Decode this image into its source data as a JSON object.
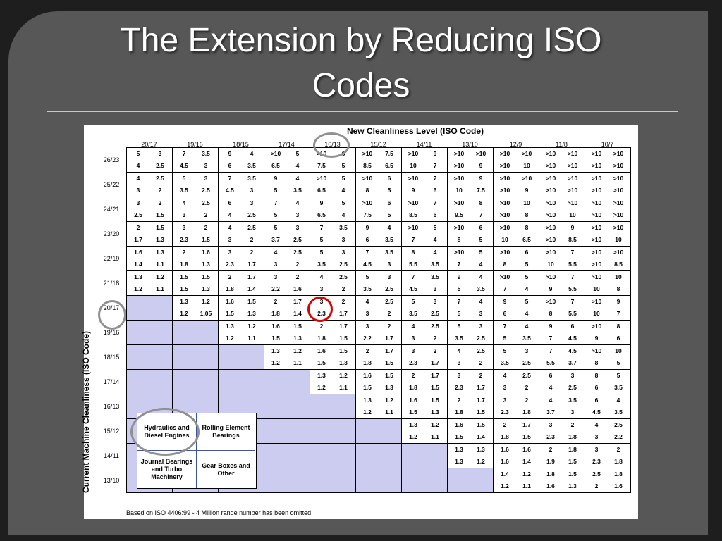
{
  "slide_title_line1": "The Extension by Reducing ISO",
  "slide_title_line2": "Codes",
  "figure": {
    "title": "New Cleanliness Level (ISO Code)",
    "y_axis_label": "Current Machine Cleanliness (ISO Code)",
    "footnote": "Based on ISO 4406:99 - 4 Million range number has been omitted.",
    "new_levels": [
      "20/17",
      "19/16",
      "18/15",
      "17/14",
      "16/13",
      "15/12",
      "14/11",
      "13/10",
      "12/9",
      "11/8",
      "10/7"
    ],
    "current_levels": [
      "26/23",
      "25/22",
      "24/21",
      "23/20",
      "22/19",
      "21/18",
      "20/17",
      "19/16",
      "18/15",
      "17/14",
      "16/13",
      "15/12",
      "14/11",
      "13/10"
    ],
    "legend": {
      "top_left": "Hydraulics and Diesel Engines",
      "top_right": "Rolling Element Bearings",
      "bottom_left": "Journal Bearings and Turbo Machinery",
      "bottom_right": "Gear Boxes and Other"
    },
    "rows": [
      [
        [
          [
            "5",
            "3"
          ],
          [
            "4",
            "2.5"
          ]
        ],
        [
          [
            "7",
            "3.5"
          ],
          [
            "4.5",
            "3"
          ]
        ],
        [
          [
            "9",
            "4"
          ],
          [
            "6",
            "3.5"
          ]
        ],
        [
          [
            ">10",
            "5"
          ],
          [
            "6.5",
            "4"
          ]
        ],
        [
          [
            ">10",
            "6"
          ],
          [
            "7.5",
            "5"
          ]
        ],
        [
          [
            ">10",
            "7.5"
          ],
          [
            "8.5",
            "6.5"
          ]
        ],
        [
          [
            ">10",
            "9"
          ],
          [
            "10",
            "7"
          ]
        ],
        [
          [
            ">10",
            ">10"
          ],
          [
            ">10",
            "9"
          ]
        ],
        [
          [
            ">10",
            ">10"
          ],
          [
            ">10",
            "10"
          ]
        ],
        [
          [
            ">10",
            ">10"
          ],
          [
            ">10",
            ">10"
          ]
        ],
        [
          [
            ">10",
            ">10"
          ],
          [
            ">10",
            ">10"
          ]
        ]
      ],
      [
        [
          [
            "4",
            "2.5"
          ],
          [
            "3",
            "2"
          ]
        ],
        [
          [
            "5",
            "3"
          ],
          [
            "3.5",
            "2.5"
          ]
        ],
        [
          [
            "7",
            "3.5"
          ],
          [
            "4.5",
            "3"
          ]
        ],
        [
          [
            "9",
            "4"
          ],
          [
            "5",
            "3.5"
          ]
        ],
        [
          [
            ">10",
            "5"
          ],
          [
            "6.5",
            "4"
          ]
        ],
        [
          [
            ">10",
            "6"
          ],
          [
            "8",
            "5"
          ]
        ],
        [
          [
            ">10",
            "7"
          ],
          [
            "9",
            "6"
          ]
        ],
        [
          [
            ">10",
            "9"
          ],
          [
            "10",
            "7.5"
          ]
        ],
        [
          [
            ">10",
            ">10"
          ],
          [
            ">10",
            "9"
          ]
        ],
        [
          [
            ">10",
            ">10"
          ],
          [
            ">10",
            ">10"
          ]
        ],
        [
          [
            ">10",
            ">10"
          ],
          [
            ">10",
            ">10"
          ]
        ]
      ],
      [
        [
          [
            "3",
            "2"
          ],
          [
            "2.5",
            "1.5"
          ]
        ],
        [
          [
            "4",
            "2.5"
          ],
          [
            "3",
            "2"
          ]
        ],
        [
          [
            "6",
            "3"
          ],
          [
            "4",
            "2.5"
          ]
        ],
        [
          [
            "7",
            "4"
          ],
          [
            "5",
            "3"
          ]
        ],
        [
          [
            "9",
            "5"
          ],
          [
            "6.5",
            "4"
          ]
        ],
        [
          [
            ">10",
            "6"
          ],
          [
            "7.5",
            "5"
          ]
        ],
        [
          [
            ">10",
            "7"
          ],
          [
            "8.5",
            "6"
          ]
        ],
        [
          [
            ">10",
            "8"
          ],
          [
            "9.5",
            "7"
          ]
        ],
        [
          [
            ">10",
            "10"
          ],
          [
            ">10",
            "8"
          ]
        ],
        [
          [
            ">10",
            ">10"
          ],
          [
            ">10",
            "10"
          ]
        ],
        [
          [
            ">10",
            ">10"
          ],
          [
            ">10",
            ">10"
          ]
        ]
      ],
      [
        [
          [
            "2",
            "1.5"
          ],
          [
            "1.7",
            "1.3"
          ]
        ],
        [
          [
            "3",
            "2"
          ],
          [
            "2.3",
            "1.5"
          ]
        ],
        [
          [
            "4",
            "2.5"
          ],
          [
            "3",
            "2"
          ]
        ],
        [
          [
            "5",
            "3"
          ],
          [
            "3.7",
            "2.5"
          ]
        ],
        [
          [
            "7",
            "3.5"
          ],
          [
            "5",
            "3"
          ]
        ],
        [
          [
            "9",
            "4"
          ],
          [
            "6",
            "3.5"
          ]
        ],
        [
          [
            ">10",
            "5"
          ],
          [
            "7",
            "4"
          ]
        ],
        [
          [
            ">10",
            "6"
          ],
          [
            "8",
            "5"
          ]
        ],
        [
          [
            ">10",
            "8"
          ],
          [
            "10",
            "6.5"
          ]
        ],
        [
          [
            ">10",
            "9"
          ],
          [
            ">10",
            "8.5"
          ]
        ],
        [
          [
            ">10",
            ">10"
          ],
          [
            ">10",
            "10"
          ]
        ]
      ],
      [
        [
          [
            "1.6",
            "1.3"
          ],
          [
            "1.4",
            "1.1"
          ]
        ],
        [
          [
            "2",
            "1.6"
          ],
          [
            "1.8",
            "1.3"
          ]
        ],
        [
          [
            "3",
            "2"
          ],
          [
            "2.3",
            "1.7"
          ]
        ],
        [
          [
            "4",
            "2.5"
          ],
          [
            "3",
            "2"
          ]
        ],
        [
          [
            "5",
            "3"
          ],
          [
            "3.5",
            "2.5"
          ]
        ],
        [
          [
            "7",
            "3.5"
          ],
          [
            "4.5",
            "3"
          ]
        ],
        [
          [
            "8",
            "4"
          ],
          [
            "5.5",
            "3.5"
          ]
        ],
        [
          [
            ">10",
            "5"
          ],
          [
            "7",
            "4"
          ]
        ],
        [
          [
            ">10",
            "6"
          ],
          [
            "8",
            "5"
          ]
        ],
        [
          [
            ">10",
            "7"
          ],
          [
            "10",
            "5.5"
          ]
        ],
        [
          [
            ">10",
            ">10"
          ],
          [
            ">10",
            "8.5"
          ]
        ]
      ],
      [
        [
          [
            "1.3",
            "1.2"
          ],
          [
            "1.2",
            "1.1"
          ]
        ],
        [
          [
            "1.5",
            "1.5"
          ],
          [
            "1.5",
            "1.3"
          ]
        ],
        [
          [
            "2",
            "1.7"
          ],
          [
            "1.8",
            "1.4"
          ]
        ],
        [
          [
            "3",
            "2"
          ],
          [
            "2.2",
            "1.6"
          ]
        ],
        [
          [
            "4",
            "2.5"
          ],
          [
            "3",
            "2"
          ]
        ],
        [
          [
            "5",
            "3"
          ],
          [
            "3.5",
            "2.5"
          ]
        ],
        [
          [
            "7",
            "3.5"
          ],
          [
            "4.5",
            "3"
          ]
        ],
        [
          [
            "9",
            "4"
          ],
          [
            "5",
            "3.5"
          ]
        ],
        [
          [
            ">10",
            "5"
          ],
          [
            "7",
            "4"
          ]
        ],
        [
          [
            ">10",
            "7"
          ],
          [
            "9",
            "5.5"
          ]
        ],
        [
          [
            ">10",
            "10"
          ],
          [
            "10",
            "8"
          ]
        ]
      ],
      [
        null,
        [
          [
            "1.3",
            "1.2"
          ],
          [
            "1.2",
            "1.05"
          ]
        ],
        [
          [
            "1.6",
            "1.5"
          ],
          [
            "1.5",
            "1.3"
          ]
        ],
        [
          [
            "2",
            "1.7"
          ],
          [
            "1.8",
            "1.4"
          ]
        ],
        [
          [
            "3",
            "2"
          ],
          [
            "2.3",
            "1.7"
          ]
        ],
        [
          [
            "4",
            "2.5"
          ],
          [
            "3",
            "2"
          ]
        ],
        [
          [
            "5",
            "3"
          ],
          [
            "3.5",
            "2.5"
          ]
        ],
        [
          [
            "7",
            "4"
          ],
          [
            "5",
            "3"
          ]
        ],
        [
          [
            "9",
            "5"
          ],
          [
            "6",
            "4"
          ]
        ],
        [
          [
            ">10",
            "7"
          ],
          [
            "8",
            "5.5"
          ]
        ],
        [
          [
            ">10",
            "9"
          ],
          [
            "10",
            "7"
          ]
        ]
      ],
      [
        null,
        null,
        [
          [
            "1.3",
            "1.2"
          ],
          [
            "1.2",
            "1.1"
          ]
        ],
        [
          [
            "1.6",
            "1.5"
          ],
          [
            "1.5",
            "1.3"
          ]
        ],
        [
          [
            "2",
            "1.7"
          ],
          [
            "1.8",
            "1.5"
          ]
        ],
        [
          [
            "3",
            "2"
          ],
          [
            "2.2",
            "1.7"
          ]
        ],
        [
          [
            "4",
            "2.5"
          ],
          [
            "3",
            "2"
          ]
        ],
        [
          [
            "5",
            "3"
          ],
          [
            "3.5",
            "2.5"
          ]
        ],
        [
          [
            "7",
            "4"
          ],
          [
            "5",
            "3.5"
          ]
        ],
        [
          [
            "9",
            "6"
          ],
          [
            "7",
            "4.5"
          ]
        ],
        [
          [
            ">10",
            "8"
          ],
          [
            "9",
            "6"
          ]
        ]
      ],
      [
        null,
        null,
        null,
        [
          [
            "1.3",
            "1.2"
          ],
          [
            "1.2",
            "1.1"
          ]
        ],
        [
          [
            "1.6",
            "1.5"
          ],
          [
            "1.5",
            "1.3"
          ]
        ],
        [
          [
            "2",
            "1.7"
          ],
          [
            "1.8",
            "1.5"
          ]
        ],
        [
          [
            "3",
            "2"
          ],
          [
            "2.3",
            "1.7"
          ]
        ],
        [
          [
            "4",
            "2.5"
          ],
          [
            "3",
            "2"
          ]
        ],
        [
          [
            "5",
            "3"
          ],
          [
            "3.5",
            "2.5"
          ]
        ],
        [
          [
            "7",
            "4.5"
          ],
          [
            "5.5",
            "3.7"
          ]
        ],
        [
          [
            ">10",
            "10"
          ],
          [
            "8",
            "5"
          ]
        ]
      ],
      [
        null,
        null,
        null,
        null,
        [
          [
            "1.3",
            "1.2"
          ],
          [
            "1.2",
            "1.1"
          ]
        ],
        [
          [
            "1.6",
            "1.5"
          ],
          [
            "1.5",
            "1.3"
          ]
        ],
        [
          [
            "2",
            "1.7"
          ],
          [
            "1.8",
            "1.5"
          ]
        ],
        [
          [
            "3",
            "2"
          ],
          [
            "2.3",
            "1.7"
          ]
        ],
        [
          [
            "4",
            "2.5"
          ],
          [
            "3",
            "2"
          ]
        ],
        [
          [
            "6",
            "3"
          ],
          [
            "4",
            "2.5"
          ]
        ],
        [
          [
            "8",
            "5"
          ],
          [
            "6",
            "3.5"
          ]
        ]
      ],
      [
        null,
        null,
        null,
        null,
        null,
        [
          [
            "1.3",
            "1.2"
          ],
          [
            "1.2",
            "1.1"
          ]
        ],
        [
          [
            "1.6",
            "1.5"
          ],
          [
            "1.5",
            "1.3"
          ]
        ],
        [
          [
            "2",
            "1.7"
          ],
          [
            "1.8",
            "1.5"
          ]
        ],
        [
          [
            "3",
            "2"
          ],
          [
            "2.3",
            "1.8"
          ]
        ],
        [
          [
            "4",
            "3.5"
          ],
          [
            "3.7",
            "3"
          ]
        ],
        [
          [
            "6",
            "4"
          ],
          [
            "4.5",
            "3.5"
          ]
        ]
      ],
      [
        null,
        null,
        null,
        null,
        null,
        null,
        [
          [
            "1.3",
            "1.2"
          ],
          [
            "1.2",
            "1.1"
          ]
        ],
        [
          [
            "1.6",
            "1.5"
          ],
          [
            "1.5",
            "1.4"
          ]
        ],
        [
          [
            "2",
            "1.7"
          ],
          [
            "1.8",
            "1.5"
          ]
        ],
        [
          [
            "3",
            "2"
          ],
          [
            "2.3",
            "1.8"
          ]
        ],
        [
          [
            "4",
            "2.5"
          ],
          [
            "3",
            "2.2"
          ]
        ]
      ],
      [
        null,
        null,
        null,
        null,
        null,
        null,
        null,
        [
          [
            "1.3",
            "1.3"
          ],
          [
            "1.3",
            "1.2"
          ]
        ],
        [
          [
            "1.6",
            "1.6"
          ],
          [
            "1.6",
            "1.4"
          ]
        ],
        [
          [
            "2",
            "1.8"
          ],
          [
            "1.9",
            "1.5"
          ]
        ],
        [
          [
            "3",
            "2"
          ],
          [
            "2.3",
            "1.8"
          ]
        ]
      ],
      [
        null,
        null,
        null,
        null,
        null,
        null,
        null,
        null,
        [
          [
            "1.4",
            "1.2"
          ],
          [
            "1.2",
            "1.1"
          ]
        ],
        [
          [
            "1.8",
            "1.5"
          ],
          [
            "1.6",
            "1.3"
          ]
        ],
        [
          [
            "2.5",
            "1.8"
          ],
          [
            "2",
            "1.6"
          ]
        ]
      ]
    ]
  },
  "colors": {
    "background": "#575757",
    "shaded_cell": "#ccccf0",
    "highlight_ring": "#d90000",
    "annotation_ring": "#909090"
  }
}
